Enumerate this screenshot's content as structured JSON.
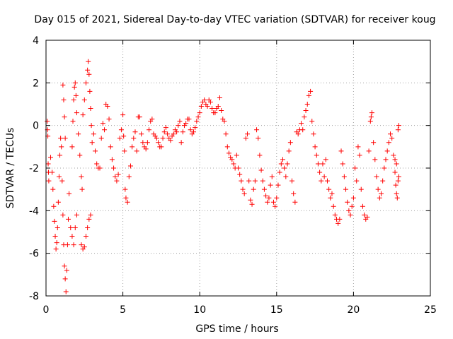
{
  "chart_data": {
    "type": "scatter",
    "title": "Day 015 of 2021, Sidereal Day-to-day VTEC variation (SDTVAR) for receiver koug",
    "xlabel": "GPS time / hours",
    "ylabel": "SDTVAR / TECUs",
    "xlim": [
      0,
      25
    ],
    "ylim": [
      -8,
      4
    ],
    "x_ticks": [
      0,
      5,
      10,
      15,
      20,
      25
    ],
    "y_ticks": [
      -8,
      -6,
      -4,
      -2,
      0,
      2,
      4
    ],
    "x_tick_labels": [
      "0",
      "5",
      "10",
      "15",
      "20",
      "25"
    ],
    "y_tick_labels": [
      "-8",
      "-6",
      "-4",
      "-2",
      "0",
      "2",
      "4"
    ],
    "grid": true,
    "marker": "+",
    "colors": {
      "series": "#ff0000",
      "axis": "#000000",
      "grid": "#a0a0a0"
    },
    "series": [
      {
        "name": "SDTVAR",
        "points": [
          [
            0.08,
            0.2
          ],
          [
            0.1,
            -0.2
          ],
          [
            0.12,
            -0.5
          ],
          [
            0.14,
            -1.8
          ],
          [
            0.16,
            -2.2
          ],
          [
            0.18,
            -2.6
          ],
          [
            0.3,
            -1.5
          ],
          [
            0.4,
            -2.2
          ],
          [
            0.45,
            -3.0
          ],
          [
            0.5,
            -3.8
          ],
          [
            0.55,
            -4.5
          ],
          [
            0.6,
            -5.2
          ],
          [
            0.65,
            -5.8
          ],
          [
            0.7,
            -5.5
          ],
          [
            0.75,
            -4.8
          ],
          [
            0.8,
            -3.6
          ],
          [
            0.85,
            -2.4
          ],
          [
            0.9,
            -1.4
          ],
          [
            0.95,
            -0.6
          ],
          [
            1.0,
            -1.0
          ],
          [
            1.05,
            -2.6
          ],
          [
            1.1,
            -4.2
          ],
          [
            1.15,
            -5.6
          ],
          [
            1.2,
            -6.6
          ],
          [
            1.25,
            -7.2
          ],
          [
            1.3,
            -7.8
          ],
          [
            1.35,
            -6.8
          ],
          [
            1.4,
            -5.6
          ],
          [
            1.45,
            -4.4
          ],
          [
            1.5,
            -3.2
          ],
          [
            1.1,
            1.9
          ],
          [
            1.15,
            1.2
          ],
          [
            1.2,
            0.4
          ],
          [
            1.25,
            -0.6
          ],
          [
            1.6,
            -4.8
          ],
          [
            1.7,
            -5.2
          ],
          [
            1.8,
            -5.6
          ],
          [
            1.9,
            -4.8
          ],
          [
            2.0,
            -4.2
          ],
          [
            1.7,
            -1.0
          ],
          [
            1.75,
            0.2
          ],
          [
            1.8,
            1.2
          ],
          [
            1.85,
            1.8
          ],
          [
            1.9,
            2.0
          ],
          [
            1.95,
            1.4
          ],
          [
            2.0,
            0.6
          ],
          [
            2.1,
            -0.4
          ],
          [
            2.2,
            -1.4
          ],
          [
            2.3,
            -2.4
          ],
          [
            2.35,
            -3.0
          ],
          [
            2.4,
            0.5
          ],
          [
            2.5,
            1.2
          ],
          [
            2.6,
            2.0
          ],
          [
            2.7,
            2.6
          ],
          [
            2.75,
            3.0
          ],
          [
            2.8,
            2.4
          ],
          [
            2.85,
            1.6
          ],
          [
            2.9,
            0.8
          ],
          [
            2.95,
            0.0
          ],
          [
            3.0,
            -0.8
          ],
          [
            2.3,
            -5.6
          ],
          [
            2.4,
            -5.8
          ],
          [
            2.5,
            -5.7
          ],
          [
            2.6,
            -5.2
          ],
          [
            2.7,
            -4.8
          ],
          [
            2.8,
            -4.4
          ],
          [
            2.9,
            -4.2
          ],
          [
            3.1,
            -0.4
          ],
          [
            3.2,
            -1.2
          ],
          [
            3.3,
            -1.8
          ],
          [
            3.4,
            -2.0
          ],
          [
            3.5,
            -2.0
          ],
          [
            3.6,
            -0.6
          ],
          [
            3.7,
            0.1
          ],
          [
            3.8,
            -0.2
          ],
          [
            3.9,
            1.0
          ],
          [
            4.0,
            0.9
          ],
          [
            4.1,
            0.3
          ],
          [
            4.2,
            -1.0
          ],
          [
            4.3,
            -1.6
          ],
          [
            4.4,
            -2.0
          ],
          [
            4.5,
            -2.4
          ],
          [
            4.6,
            -2.6
          ],
          [
            4.7,
            -2.3
          ],
          [
            4.8,
            -0.6
          ],
          [
            4.9,
            -0.2
          ],
          [
            5.0,
            0.5
          ],
          [
            5.05,
            -0.5
          ],
          [
            5.1,
            -1.2
          ],
          [
            5.15,
            -3.0
          ],
          [
            5.2,
            -3.4
          ],
          [
            5.3,
            -3.6
          ],
          [
            5.4,
            -2.4
          ],
          [
            5.5,
            -1.9
          ],
          [
            5.6,
            -1.0
          ],
          [
            5.7,
            -0.6
          ],
          [
            5.8,
            -0.3
          ],
          [
            5.9,
            -1.2
          ],
          [
            6.0,
            0.4
          ],
          [
            6.1,
            0.4
          ],
          [
            6.2,
            -0.4
          ],
          [
            6.3,
            -0.8
          ],
          [
            6.4,
            -1.0
          ],
          [
            6.5,
            -1.1
          ],
          [
            6.6,
            -0.8
          ],
          [
            6.7,
            -0.2
          ],
          [
            6.8,
            0.2
          ],
          [
            6.9,
            0.3
          ],
          [
            7.0,
            -0.4
          ],
          [
            7.1,
            -0.5
          ],
          [
            7.2,
            -0.6
          ],
          [
            7.3,
            -0.8
          ],
          [
            7.4,
            -1.0
          ],
          [
            7.5,
            -1.0
          ],
          [
            7.6,
            -0.6
          ],
          [
            7.7,
            -0.3
          ],
          [
            7.8,
            -0.1
          ],
          [
            7.9,
            -0.4
          ],
          [
            8.0,
            -0.6
          ],
          [
            8.1,
            -0.7
          ],
          [
            8.2,
            -0.5
          ],
          [
            8.3,
            -0.4
          ],
          [
            8.4,
            -0.2
          ],
          [
            8.5,
            -0.3
          ],
          [
            8.6,
            0.0
          ],
          [
            8.7,
            0.2
          ],
          [
            8.8,
            -0.8
          ],
          [
            8.9,
            -0.3
          ],
          [
            9.0,
            0.0
          ],
          [
            9.1,
            0.1
          ],
          [
            9.2,
            0.3
          ],
          [
            9.3,
            0.3
          ],
          [
            9.4,
            -0.2
          ],
          [
            9.5,
            -0.4
          ],
          [
            9.6,
            -0.3
          ],
          [
            9.7,
            -0.1
          ],
          [
            9.8,
            0.2
          ],
          [
            9.9,
            0.4
          ],
          [
            10.0,
            0.6
          ],
          [
            10.1,
            0.9
          ],
          [
            10.2,
            1.1
          ],
          [
            10.3,
            1.2
          ],
          [
            10.4,
            1.0
          ],
          [
            10.5,
            0.9
          ],
          [
            10.6,
            1.2
          ],
          [
            10.7,
            1.1
          ],
          [
            10.8,
            0.8
          ],
          [
            10.9,
            0.6
          ],
          [
            11.0,
            0.6
          ],
          [
            11.1,
            0.8
          ],
          [
            11.2,
            0.9
          ],
          [
            11.3,
            1.3
          ],
          [
            11.4,
            0.7
          ],
          [
            11.5,
            0.3
          ],
          [
            11.6,
            0.2
          ],
          [
            11.7,
            -0.4
          ],
          [
            11.8,
            -1.0
          ],
          [
            11.9,
            -1.3
          ],
          [
            12.0,
            -1.5
          ],
          [
            12.1,
            -1.6
          ],
          [
            12.2,
            -1.8
          ],
          [
            12.3,
            -2.0
          ],
          [
            12.4,
            -1.4
          ],
          [
            12.5,
            -2.0
          ],
          [
            12.6,
            -2.3
          ],
          [
            12.7,
            -2.6
          ],
          [
            12.8,
            -3.0
          ],
          [
            12.9,
            -3.2
          ],
          [
            13.0,
            -0.6
          ],
          [
            13.1,
            -0.4
          ],
          [
            13.2,
            -2.6
          ],
          [
            13.3,
            -3.5
          ],
          [
            13.4,
            -3.7
          ],
          [
            13.5,
            -3.0
          ],
          [
            13.6,
            -2.6
          ],
          [
            13.7,
            -0.2
          ],
          [
            13.8,
            -0.6
          ],
          [
            13.9,
            -1.4
          ],
          [
            14.0,
            -2.1
          ],
          [
            14.1,
            -2.6
          ],
          [
            14.2,
            -3.0
          ],
          [
            14.3,
            -3.3
          ],
          [
            14.4,
            -3.6
          ],
          [
            14.5,
            -3.4
          ],
          [
            14.6,
            -2.8
          ],
          [
            14.7,
            -2.4
          ],
          [
            14.8,
            -3.6
          ],
          [
            14.9,
            -3.8
          ],
          [
            15.0,
            -3.4
          ],
          [
            15.1,
            -2.8
          ],
          [
            15.2,
            -2.2
          ],
          [
            15.3,
            -1.8
          ],
          [
            15.4,
            -1.6
          ],
          [
            15.5,
            -2.0
          ],
          [
            15.6,
            -2.4
          ],
          [
            15.7,
            -1.8
          ],
          [
            15.8,
            -1.2
          ],
          [
            15.9,
            -0.8
          ],
          [
            16.0,
            -2.6
          ],
          [
            16.1,
            -3.2
          ],
          [
            16.2,
            -3.6
          ],
          [
            16.3,
            -0.3
          ],
          [
            16.4,
            -0.4
          ],
          [
            16.5,
            -0.2
          ],
          [
            16.6,
            0.1
          ],
          [
            16.7,
            -0.2
          ],
          [
            16.8,
            0.4
          ],
          [
            16.9,
            0.7
          ],
          [
            17.0,
            1.0
          ],
          [
            17.1,
            1.4
          ],
          [
            17.2,
            1.6
          ],
          [
            17.3,
            0.2
          ],
          [
            17.4,
            -0.4
          ],
          [
            17.5,
            -1.0
          ],
          [
            17.6,
            -1.4
          ],
          [
            17.7,
            -1.8
          ],
          [
            17.8,
            -2.2
          ],
          [
            17.9,
            -2.6
          ],
          [
            18.0,
            -1.8
          ],
          [
            18.1,
            -2.4
          ],
          [
            18.2,
            -1.6
          ],
          [
            18.3,
            -2.6
          ],
          [
            18.4,
            -3.0
          ],
          [
            18.5,
            -3.4
          ],
          [
            18.6,
            -3.2
          ],
          [
            18.7,
            -3.8
          ],
          [
            18.8,
            -4.2
          ],
          [
            18.9,
            -4.4
          ],
          [
            19.0,
            -4.6
          ],
          [
            19.1,
            -4.4
          ],
          [
            19.2,
            -1.2
          ],
          [
            19.3,
            -1.8
          ],
          [
            19.4,
            -2.4
          ],
          [
            19.5,
            -3.0
          ],
          [
            19.6,
            -3.6
          ],
          [
            19.7,
            -4.0
          ],
          [
            19.8,
            -4.2
          ],
          [
            19.9,
            -3.8
          ],
          [
            20.0,
            -3.4
          ],
          [
            20.1,
            -2.0
          ],
          [
            20.2,
            -2.6
          ],
          [
            20.3,
            -1.0
          ],
          [
            20.4,
            -1.4
          ],
          [
            20.5,
            -3.0
          ],
          [
            20.6,
            -3.8
          ],
          [
            20.7,
            -4.2
          ],
          [
            20.8,
            -4.4
          ],
          [
            20.9,
            -4.3
          ],
          [
            21.0,
            -1.2
          ],
          [
            21.1,
            0.2
          ],
          [
            21.15,
            0.4
          ],
          [
            21.2,
            0.6
          ],
          [
            21.3,
            -0.8
          ],
          [
            21.4,
            -1.6
          ],
          [
            21.5,
            -2.4
          ],
          [
            21.6,
            -3.0
          ],
          [
            21.7,
            -3.4
          ],
          [
            21.8,
            -3.2
          ],
          [
            21.9,
            -2.6
          ],
          [
            22.0,
            -2.0
          ],
          [
            22.1,
            -1.6
          ],
          [
            22.2,
            -1.2
          ],
          [
            22.3,
            -0.8
          ],
          [
            22.4,
            -0.4
          ],
          [
            22.5,
            -0.6
          ],
          [
            22.6,
            -1.4
          ],
          [
            22.7,
            -2.2
          ],
          [
            22.75,
            -2.8
          ],
          [
            22.8,
            -3.2
          ],
          [
            22.85,
            -3.4
          ],
          [
            22.9,
            -2.6
          ],
          [
            22.95,
            -2.4
          ],
          [
            22.9,
            -0.2
          ],
          [
            22.95,
            0.0
          ],
          [
            22.7,
            -1.6
          ],
          [
            22.8,
            -1.8
          ]
        ]
      }
    ]
  }
}
